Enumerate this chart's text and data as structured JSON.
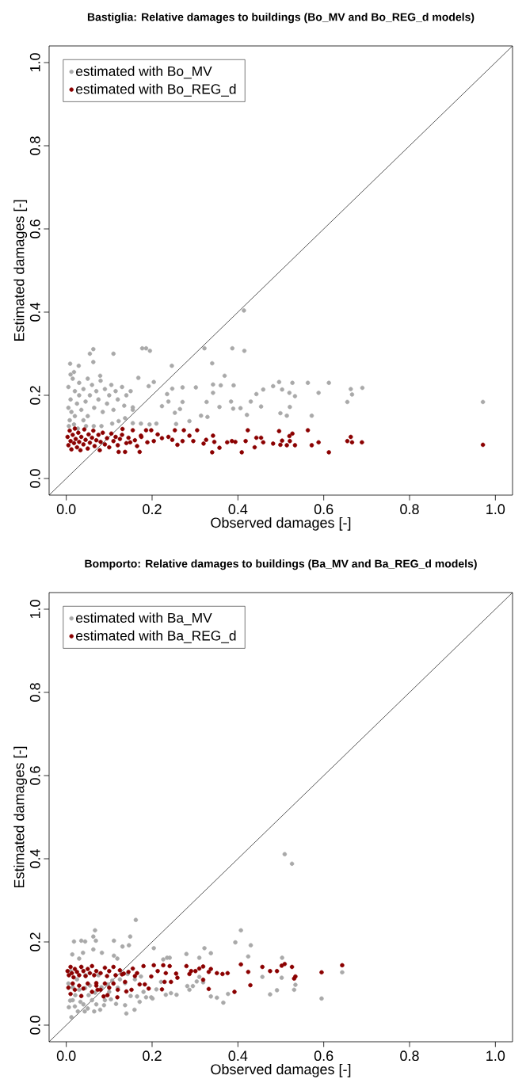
{
  "chart_data": [
    {
      "type": "scatter",
      "title": "Bastiglia: Relative damages to buildings (Bo_MV and Bo_REG_d models)",
      "xlabel": "Observed damages [-]",
      "ylabel": "Estimated damages [-]",
      "xlim": [
        -0.04,
        1.04
      ],
      "ylim": [
        -0.04,
        1.04
      ],
      "xticks": [
        {
          "value": 0,
          "label": "0.0"
        },
        {
          "value": 0.2,
          "label": "0.2"
        },
        {
          "value": 0.4,
          "label": "0.4"
        },
        {
          "value": 0.6,
          "label": "0.6"
        },
        {
          "value": 0.8,
          "label": "0.8"
        },
        {
          "value": 1,
          "label": "1.0"
        }
      ],
      "yticks": [
        {
          "value": 0,
          "label": "0.0"
        },
        {
          "value": 0.2,
          "label": "0.2"
        },
        {
          "value": 0.4,
          "label": "0.4"
        },
        {
          "value": 0.6,
          "label": "0.6"
        },
        {
          "value": 0.8,
          "label": "0.8"
        },
        {
          "value": 1,
          "label": "1.0"
        }
      ],
      "legend": "top left",
      "marker": "circle",
      "series": [
        {
          "name": "estimated with Bo_MV",
          "color": "#a9a9a9",
          "x": [
            0.005,
            0.01,
            0.012,
            0.015,
            0.02,
            0.02,
            0.025,
            0.03,
            0.03,
            0.035,
            0.04,
            0.045,
            0.05,
            0.05,
            0.055,
            0.06,
            0.065,
            0.07,
            0.075,
            0.08,
            0.085,
            0.09,
            0.095,
            0.1,
            0.105,
            0.11,
            0.115,
            0.12,
            0.13,
            0.135,
            0.14,
            0.15,
            0.155,
            0.005,
            0.008,
            0.01,
            0.018,
            0.04,
            0.063,
            0.055,
            0.11,
            0.177,
            0.186,
            0.195,
            0.063,
            0.009,
            0.029,
            0.018,
            0.079,
            0.246,
            0.322,
            0.387,
            0.415,
            0.414,
            0.34,
            0.369,
            0.43,
            0.421,
            0.406,
            0.389,
            0.384,
            0.39,
            0.36,
            0.342,
            0.342,
            0.357,
            0.327,
            0.329,
            0.314,
            0.302,
            0.287,
            0.271,
            0.265,
            0.253,
            0.256,
            0.238,
            0.223,
            0.235,
            0.271,
            0.247,
            0.204,
            0.192,
            0.21,
            0.194,
            0.174,
            0.155,
            0.168,
            0.155,
            0.137,
            0.122,
            0.107,
            0.082,
            0.064,
            0.046,
            0.027,
            0.006,
            0.496,
            0.527,
            0.563,
            0.612,
            0.482,
            0.459,
            0.503,
            0.52,
            0.533,
            0.588,
            0.663,
            0.69,
            0.666,
            0.655,
            0.971,
            0.454,
            0.521,
            0.499,
            0.514,
            0.572,
            0.443
          ],
          "values": [
            0.22,
            0.19,
            0.16,
            0.24,
            0.21,
            0.15,
            0.18,
            0.23,
            0.2,
            0.165,
            0.215,
            0.185,
            0.24,
            0.15,
            0.2,
            0.225,
            0.17,
            0.21,
            0.19,
            0.235,
            0.16,
            0.215,
            0.18,
            0.2,
            0.225,
            0.165,
            0.21,
            0.19,
            0.22,
            0.175,
            0.2,
            0.21,
            0.165,
            0.17,
            0.14,
            0.25,
            0.13,
            0.14,
            0.311,
            0.3,
            0.3,
            0.313,
            0.313,
            0.307,
            0.28,
            0.276,
            0.271,
            0.256,
            0.247,
            0.271,
            0.313,
            0.313,
            0.307,
            0.404,
            0.277,
            0.247,
            0.185,
            0.153,
            0.169,
            0.168,
            0.185,
            0.224,
            0.224,
            0.226,
            0.206,
            0.172,
            0.184,
            0.148,
            0.151,
            0.219,
            0.138,
            0.184,
            0.167,
            0.158,
            0.131,
            0.185,
            0.174,
            0.203,
            0.219,
            0.216,
            0.232,
            0.222,
            0.132,
            0.13,
            0.132,
            0.133,
            0.242,
            0.171,
            0.145,
            0.138,
            0.132,
            0.126,
            0.126,
            0.126,
            0.12,
            0.126,
            0.232,
            0.23,
            0.23,
            0.23,
            0.222,
            0.214,
            0.214,
            0.206,
            0.198,
            0.206,
            0.215,
            0.218,
            0.202,
            0.184,
            0.184,
            0.173,
            0.172,
            0.157,
            0.151,
            0.151,
            0.203
          ]
        },
        {
          "name": "estimated with Bo_REG_d",
          "color": "#8b0000",
          "x": [
            0.003,
            0.005,
            0.008,
            0.01,
            0.012,
            0.015,
            0.018,
            0.02,
            0.022,
            0.025,
            0.028,
            0.03,
            0.033,
            0.035,
            0.04,
            0.042,
            0.045,
            0.05,
            0.052,
            0.055,
            0.06,
            0.063,
            0.066,
            0.07,
            0.075,
            0.078,
            0.08,
            0.085,
            0.09,
            0.095,
            0.1,
            0.105,
            0.11,
            0.115,
            0.12,
            0.125,
            0.13,
            0.14,
            0.145,
            0.16,
            0.165,
            0.175,
            0.439,
            0.423,
            0.418,
            0.409,
            0.394,
            0.386,
            0.375,
            0.357,
            0.345,
            0.342,
            0.34,
            0.326,
            0.32,
            0.305,
            0.296,
            0.287,
            0.274,
            0.271,
            0.259,
            0.253,
            0.247,
            0.238,
            0.223,
            0.213,
            0.198,
            0.204,
            0.186,
            0.189,
            0.174,
            0.171,
            0.155,
            0.149,
            0.137,
            0.131,
            0.122,
            0.496,
            0.527,
            0.52,
            0.563,
            0.443,
            0.454,
            0.459,
            0.482,
            0.499,
            0.503,
            0.514,
            0.521,
            0.533,
            0.572,
            0.588,
            0.612,
            0.655,
            0.663,
            0.666,
            0.689,
            0.971
          ],
          "values": [
            0.1,
            0.08,
            0.115,
            0.09,
            0.07,
            0.105,
            0.085,
            0.12,
            0.095,
            0.075,
            0.11,
            0.088,
            0.068,
            0.1,
            0.082,
            0.118,
            0.093,
            0.072,
            0.106,
            0.086,
            0.098,
            0.115,
            0.078,
            0.092,
            0.105,
            0.068,
            0.088,
            0.11,
            0.082,
            0.097,
            0.075,
            0.108,
            0.09,
            0.1,
            0.08,
            0.095,
            0.105,
            0.085,
            0.098,
            0.092,
            0.078,
            0.1,
            0.075,
            0.116,
            0.09,
            0.063,
            0.088,
            0.09,
            0.087,
            0.074,
            0.088,
            0.103,
            0.063,
            0.093,
            0.084,
            0.116,
            0.09,
            0.103,
            0.116,
            0.09,
            0.081,
            0.116,
            0.093,
            0.1,
            0.097,
            0.106,
            0.116,
            0.09,
            0.116,
            0.087,
            0.103,
            0.064,
            0.116,
            0.087,
            0.064,
            0.119,
            0.064,
            0.114,
            0.108,
            0.102,
            0.116,
            0.098,
            0.098,
            0.087,
            0.084,
            0.081,
            0.091,
            0.08,
            0.09,
            0.08,
            0.08,
            0.087,
            0.063,
            0.09,
            0.1,
            0.087,
            0.087,
            0.081
          ]
        },
        {
          "type": "line",
          "color": "#000000",
          "marker": "none",
          "x": [
            -0.04,
            1.04
          ],
          "values": [
            -0.04,
            1.04
          ]
        }
      ]
    },
    {
      "type": "scatter",
      "title": "Bomporto: Relative damages to buildings (Ba_MV and Ba_REG_d models)",
      "xlabel": "Observed damages [-]",
      "ylabel": "Estimated damages [-]",
      "xlim": [
        -0.04,
        1.04
      ],
      "ylim": [
        -0.04,
        1.04
      ],
      "xticks": [
        {
          "value": 0,
          "label": "0.0"
        },
        {
          "value": 0.2,
          "label": "0.2"
        },
        {
          "value": 0.4,
          "label": "0.4"
        },
        {
          "value": 0.6,
          "label": "0.6"
        },
        {
          "value": 0.8,
          "label": "0.8"
        },
        {
          "value": 1,
          "label": "1.0"
        }
      ],
      "yticks": [
        {
          "value": 0,
          "label": "0.0"
        },
        {
          "value": 0.2,
          "label": "0.2"
        },
        {
          "value": 0.4,
          "label": "0.4"
        },
        {
          "value": 0.6,
          "label": "0.6"
        },
        {
          "value": 0.8,
          "label": "0.8"
        },
        {
          "value": 1,
          "label": "1.0"
        }
      ],
      "legend": "top left",
      "marker": "circle",
      "series": [
        {
          "name": "estimated with Ba_MV",
          "color": "#a9a9a9",
          "x": [
            0.005,
            0.01,
            0.015,
            0.02,
            0.025,
            0.03,
            0.035,
            0.04,
            0.045,
            0.05,
            0.055,
            0.06,
            0.07,
            0.075,
            0.09,
            0.1,
            0.12,
            0.15,
            0.16,
            0.18,
            0.162,
            0.407,
            0.067,
            0.063,
            0.149,
            0.018,
            0.035,
            0.044,
            0.069,
            0.111,
            0.146,
            0.131,
            0.394,
            0.43,
            0.424,
            0.204,
            0.063,
            0.083,
            0.039,
            0.014,
            0.322,
            0.337,
            0.31,
            0.28,
            0.241,
            0.235,
            0.226,
            0.111,
            0.119,
            0.03,
            0.377,
            0.366,
            0.351,
            0.337,
            0.319,
            0.31,
            0.304,
            0.295,
            0.282,
            0.287,
            0.257,
            0.244,
            0.232,
            0.221,
            0.21,
            0.198,
            0.201,
            0.186,
            0.171,
            0.165,
            0.159,
            0.14,
            0.137,
            0.116,
            0.104,
            0.088,
            0.079,
            0.065,
            0.043,
            0.027,
            0.012,
            0.006,
            0.009,
            0.021,
            0.033,
            0.052,
            0.067,
            0.082,
            0.097,
            0.107,
            0.125,
            0.143,
            0.137,
            0.174,
            0.015,
            0.044,
            0.509,
            0.526,
            0.503,
            0.457,
            0.502,
            0.534,
            0.531,
            0.491,
            0.475,
            0.595,
            0.643
          ],
          "values": [
            0.1,
            0.13,
            0.06,
            0.045,
            0.11,
            0.085,
            0.14,
            0.05,
            0.12,
            0.04,
            0.095,
            0.06,
            0.05,
            0.12,
            0.06,
            0.08,
            0.09,
            0.07,
            0.11,
            0.08,
            0.253,
            0.228,
            0.228,
            0.213,
            0.213,
            0.201,
            0.203,
            0.201,
            0.203,
            0.203,
            0.192,
            0.189,
            0.199,
            0.192,
            0.165,
            0.185,
            0.182,
            0.174,
            0.174,
            0.17,
            0.185,
            0.173,
            0.162,
            0.171,
            0.162,
            0.162,
            0.158,
            0.167,
            0.16,
            0.16,
            0.075,
            0.054,
            0.066,
            0.069,
            0.103,
            0.116,
            0.105,
            0.094,
            0.094,
            0.085,
            0.073,
            0.077,
            0.073,
            0.104,
            0.086,
            0.067,
            0.064,
            0.067,
            0.056,
            0.069,
            0.037,
            0.028,
            0.048,
            0.051,
            0.062,
            0.048,
            0.037,
            0.033,
            0.033,
            0.033,
            0.019,
            0.043,
            0.059,
            0.072,
            0.056,
            0.072,
            0.078,
            0.091,
            0.098,
            0.107,
            0.11,
            0.123,
            0.101,
            0.117,
            0.091,
            0.089,
            0.411,
            0.388,
            0.162,
            0.116,
            0.114,
            0.097,
            0.085,
            0.084,
            0.074,
            0.064,
            0.127
          ]
        },
        {
          "name": "estimated with Ba_REG_d",
          "color": "#8b0000",
          "x": [
            0.003,
            0.006,
            0.01,
            0.013,
            0.017,
            0.02,
            0.025,
            0.03,
            0.035,
            0.04,
            0.045,
            0.05,
            0.055,
            0.06,
            0.065,
            0.07,
            0.08,
            0.09,
            0.095,
            0.1,
            0.11,
            0.115,
            0.125,
            0.13,
            0.145,
            0.155,
            0.16,
            0.005,
            0.01,
            0.015,
            0.02,
            0.03,
            0.035,
            0.04,
            0.05,
            0.06,
            0.07,
            0.08,
            0.09,
            0.1,
            0.11,
            0.12,
            0.407,
            0.429,
            0.424,
            0.392,
            0.376,
            0.364,
            0.351,
            0.337,
            0.332,
            0.332,
            0.319,
            0.319,
            0.31,
            0.301,
            0.291,
            0.287,
            0.28,
            0.259,
            0.256,
            0.244,
            0.241,
            0.232,
            0.229,
            0.223,
            0.226,
            0.213,
            0.204,
            0.198,
            0.192,
            0.183,
            0.18,
            0.171,
            0.165,
            0.152,
            0.14,
            0.137,
            0.134,
            0.119,
            0.096,
            0.087,
            0.073,
            0.07,
            0.457,
            0.475,
            0.491,
            0.502,
            0.509,
            0.526,
            0.531,
            0.534,
            0.595,
            0.643
          ],
          "values": [
            0.13,
            0.12,
            0.14,
            0.125,
            0.115,
            0.135,
            0.128,
            0.12,
            0.14,
            0.13,
            0.118,
            0.135,
            0.125,
            0.142,
            0.12,
            0.13,
            0.125,
            0.138,
            0.118,
            0.13,
            0.14,
            0.12,
            0.132,
            0.122,
            0.128,
            0.136,
            0.118,
            0.09,
            0.075,
            0.1,
            0.085,
            0.095,
            0.07,
            0.088,
            0.1,
            0.08,
            0.095,
            0.085,
            0.1,
            0.09,
            0.1,
            0.085,
            0.146,
            0.096,
            0.128,
            0.08,
            0.125,
            0.123,
            0.125,
            0.135,
            0.128,
            0.087,
            0.141,
            0.109,
            0.136,
            0.13,
            0.13,
            0.123,
            0.142,
            0.114,
            0.124,
            0.104,
            0.142,
            0.125,
            0.104,
            0.086,
            0.144,
            0.13,
            0.144,
            0.117,
            0.088,
            0.098,
            0.142,
            0.098,
            0.125,
            0.085,
            0.081,
            0.104,
            0.124,
            0.067,
            0.072,
            0.069,
            0.085,
            0.101,
            0.14,
            0.13,
            0.13,
            0.143,
            0.147,
            0.14,
            0.112,
            0.117,
            0.127,
            0.144
          ]
        },
        {
          "type": "line",
          "color": "#000000",
          "marker": "none",
          "x": [
            -0.04,
            1.04
          ],
          "values": [
            -0.04,
            1.04
          ]
        }
      ]
    }
  ]
}
